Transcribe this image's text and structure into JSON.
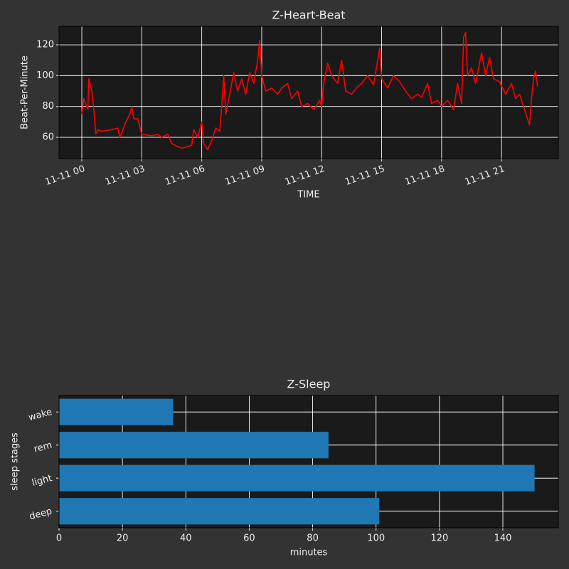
{
  "chart_data": [
    {
      "type": "line",
      "title": "Z-Heart-Beat",
      "xlabel": "TIME",
      "ylabel": "Beat-Per-Minute",
      "color": "#ff0000",
      "x": [
        0.0,
        0.1,
        0.3,
        0.35,
        0.5,
        0.6,
        0.7,
        0.8,
        1.0,
        1.5,
        1.8,
        1.9,
        2.0,
        2.2,
        2.4,
        2.5,
        2.6,
        2.8,
        3.0,
        3.5,
        3.8,
        4.0,
        4.3,
        4.5,
        4.8,
        5.0,
        5.3,
        5.5,
        5.6,
        5.8,
        6.0,
        6.1,
        6.3,
        6.5,
        6.7,
        6.9,
        7.0,
        7.1,
        7.2,
        7.4,
        7.6,
        7.8,
        8.0,
        8.2,
        8.4,
        8.6,
        8.8,
        8.9,
        9.0,
        9.2,
        9.5,
        9.8,
        10.0,
        10.3,
        10.5,
        10.8,
        11.0,
        11.3,
        11.6,
        11.9,
        12.0,
        12.1,
        12.3,
        12.5,
        12.8,
        13.0,
        13.2,
        13.5,
        13.8,
        14.0,
        14.3,
        14.6,
        14.9,
        15.0,
        15.3,
        15.6,
        15.9,
        16.2,
        16.5,
        16.8,
        17.0,
        17.3,
        17.5,
        17.8,
        18.0,
        18.3,
        18.6,
        18.8,
        19.0,
        19.1,
        19.2,
        19.3,
        19.5,
        19.7,
        20.0,
        20.2,
        20.4,
        20.6,
        20.9,
        21.2,
        21.5,
        21.7,
        21.9,
        22.1,
        22.3,
        22.4,
        22.5,
        22.6,
        22.7,
        22.8
      ],
      "values": [
        75,
        85,
        78,
        98,
        90,
        78,
        62,
        65,
        64,
        65,
        66,
        60,
        63,
        70,
        75,
        80,
        72,
        72,
        62,
        61,
        62,
        60,
        62,
        56,
        54,
        53,
        54,
        55,
        65,
        60,
        70,
        56,
        52,
        58,
        66,
        64,
        80,
        100,
        75,
        88,
        102,
        90,
        98,
        88,
        102,
        95,
        110,
        123,
        100,
        90,
        92,
        88,
        92,
        95,
        85,
        90,
        80,
        82,
        78,
        84,
        80,
        95,
        108,
        100,
        95,
        110,
        90,
        88,
        93,
        95,
        100,
        94,
        118,
        98,
        92,
        100,
        96,
        90,
        85,
        88,
        86,
        95,
        82,
        84,
        80,
        84,
        78,
        95,
        82,
        125,
        128,
        100,
        105,
        95,
        115,
        100,
        112,
        98,
        96,
        88,
        95,
        85,
        88,
        80,
        72,
        68,
        85,
        98,
        103,
        93
      ],
      "xlim": [
        -1.14,
        23.84
      ],
      "ylim": [
        46.2,
        132
      ],
      "xticks": [
        {
          "value": 0,
          "label": "11-11 00"
        },
        {
          "value": 3,
          "label": "11-11 03"
        },
        {
          "value": 6,
          "label": "11-11 06"
        },
        {
          "value": 9,
          "label": "11-11 09"
        },
        {
          "value": 12,
          "label": "11-11 12"
        },
        {
          "value": 15,
          "label": "11-11 15"
        },
        {
          "value": 18,
          "label": "11-11 18"
        },
        {
          "value": 21,
          "label": "11-11 21"
        }
      ],
      "yticks": [
        60,
        80,
        100,
        120
      ],
      "grid": true
    },
    {
      "type": "barh",
      "title": "Z-Sleep",
      "xlabel": "minutes",
      "ylabel": "sleep stages",
      "color": "#1f77b4",
      "categories": [
        "deep",
        "light",
        "rem",
        "wake"
      ],
      "values": [
        101,
        150,
        85,
        36
      ],
      "xlim": [
        0,
        157.5
      ],
      "xticks": [
        0,
        20,
        40,
        60,
        80,
        100,
        120,
        140
      ],
      "grid": true
    }
  ]
}
